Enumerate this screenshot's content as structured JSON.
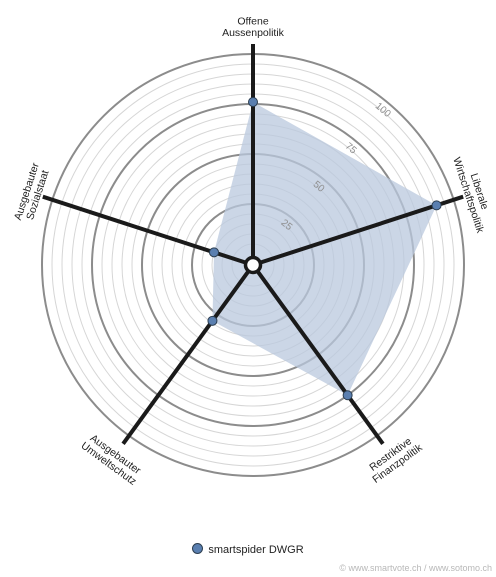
{
  "chart_data": {
    "type": "radar",
    "axes": [
      {
        "label": [
          "Offene",
          "Aussenpolitik"
        ],
        "value": 76
      },
      {
        "label": [
          "Liberale",
          "Wirtschaftspolitik"
        ],
        "value": 91
      },
      {
        "label": [
          "Restriktive",
          "Finanzpolitik"
        ],
        "value": 75
      },
      {
        "label": [
          "Ausgebauter",
          "Umweltschutz"
        ],
        "value": 29
      },
      {
        "label": [
          "Ausgebauter",
          "Sozialstaat"
        ],
        "value": 15
      }
    ],
    "ticks": [
      "25",
      "50",
      "75",
      "100"
    ],
    "range": [
      0,
      100
    ],
    "series": [
      {
        "name": "smartspider DWGR",
        "color": "#5a7fb0"
      }
    ]
  },
  "legend": {
    "label": "smartspider DWGR",
    "color": "#5a7fb0"
  },
  "credit": "© www.smartvote.ch / www.sotomo.ch"
}
